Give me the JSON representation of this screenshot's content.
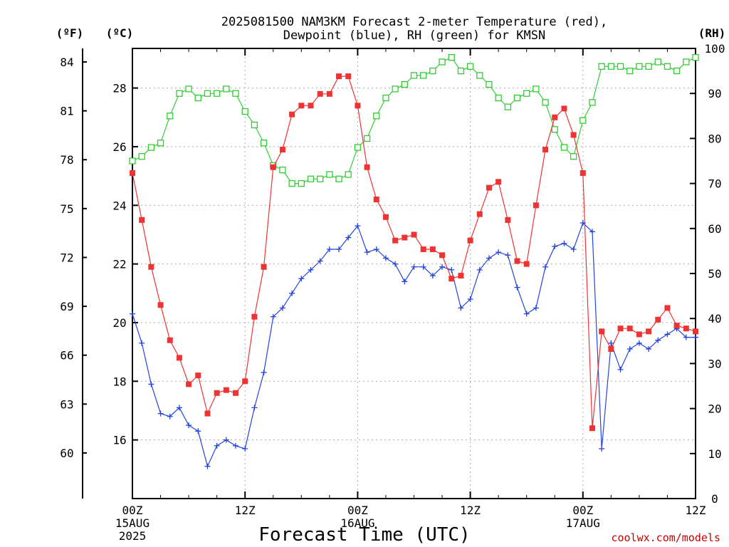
{
  "chart_data": {
    "type": "line",
    "title": [
      "2025081500 NAM3KM Forecast 2-meter Temperature (red),",
      "Dewpoint (blue), RH (green) for KMSN"
    ],
    "xlabel": "Forecast Time (UTC)",
    "x_ticks": [
      {
        "label": "00Z",
        "sub": [
          "15AUG",
          "2025"
        ],
        "hour": 0
      },
      {
        "label": "12Z",
        "sub": [],
        "hour": 12
      },
      {
        "label": "00Z",
        "sub": [
          "16AUG"
        ],
        "hour": 24
      },
      {
        "label": "12Z",
        "sub": [],
        "hour": 36
      },
      {
        "label": "00Z",
        "sub": [
          "17AUG"
        ],
        "hour": 48
      },
      {
        "label": "12Z",
        "sub": [],
        "hour": 60
      }
    ],
    "x_unit": "forecast hour",
    "xlim": [
      0,
      60
    ],
    "y_left_c": {
      "unit": "(ºC)",
      "ticks": [
        16,
        18,
        20,
        22,
        24,
        26,
        28
      ],
      "lim": [
        14.0,
        29.35
      ]
    },
    "y_left_f": {
      "unit": "(ºF)",
      "ticks": [
        60,
        63,
        66,
        69,
        72,
        75,
        78,
        81,
        84
      ]
    },
    "y_right": {
      "unit": "(RH)",
      "ticks": [
        0,
        10,
        20,
        30,
        40,
        50,
        60,
        70,
        80,
        90,
        100
      ],
      "lim": [
        0,
        100
      ]
    },
    "grid": true,
    "series": [
      {
        "name": "Temperature",
        "axis": "celsius",
        "color": "#ee3333",
        "marker": "filled-square",
        "values": [
          25.1,
          23.5,
          21.9,
          20.6,
          19.4,
          18.8,
          17.9,
          18.2,
          16.9,
          17.6,
          17.7,
          17.6,
          18.0,
          20.2,
          21.9,
          25.3,
          25.9,
          27.1,
          27.4,
          27.4,
          27.8,
          27.8,
          28.4,
          28.4,
          27.4,
          25.3,
          24.2,
          23.6,
          22.8,
          22.9,
          23.0,
          22.5,
          22.5,
          22.3,
          21.5,
          21.6,
          22.8,
          23.7,
          24.6,
          24.8,
          23.5,
          22.1,
          22.0,
          24.0,
          25.9,
          27.0,
          27.3,
          26.4,
          25.1,
          16.4,
          19.7,
          19.1,
          19.8,
          19.8,
          19.6,
          19.7,
          20.1,
          20.5,
          19.9,
          19.8,
          19.7
        ]
      },
      {
        "name": "Dewpoint",
        "axis": "celsius",
        "color": "#2244dd",
        "marker": "plus",
        "values": [
          20.3,
          19.3,
          17.9,
          16.9,
          16.8,
          17.1,
          16.5,
          16.3,
          15.1,
          15.8,
          16.0,
          15.8,
          15.7,
          17.1,
          18.3,
          20.2,
          20.5,
          21.0,
          21.5,
          21.8,
          22.1,
          22.5,
          22.5,
          22.9,
          23.3,
          22.4,
          22.5,
          22.2,
          22.0,
          21.4,
          21.9,
          21.9,
          21.6,
          21.9,
          21.8,
          20.5,
          20.8,
          21.8,
          22.2,
          22.4,
          22.3,
          21.2,
          20.3,
          20.5,
          21.9,
          22.6,
          22.7,
          22.5,
          23.4,
          23.1,
          15.7,
          19.3,
          18.4,
          19.1,
          19.3,
          19.1,
          19.4,
          19.6,
          19.8,
          19.5,
          19.5
        ]
      },
      {
        "name": "RH",
        "axis": "rh",
        "color": "#33cc33",
        "marker": "open-square",
        "values": [
          75,
          76,
          78,
          79,
          85,
          90,
          91,
          89,
          90,
          90,
          91,
          90,
          86,
          83,
          79,
          74,
          73,
          70,
          70,
          71,
          71,
          72,
          71,
          72,
          78,
          80,
          85,
          89,
          91,
          92,
          94,
          94,
          95,
          97,
          98,
          95,
          96,
          94,
          92,
          89,
          87,
          89,
          90,
          91,
          88,
          82,
          78,
          76,
          84,
          88,
          96,
          96,
          96,
          95,
          96,
          96,
          97,
          96,
          95,
          97,
          98
        ]
      }
    ]
  },
  "footer": {
    "credit": "coolwx.com/models"
  }
}
